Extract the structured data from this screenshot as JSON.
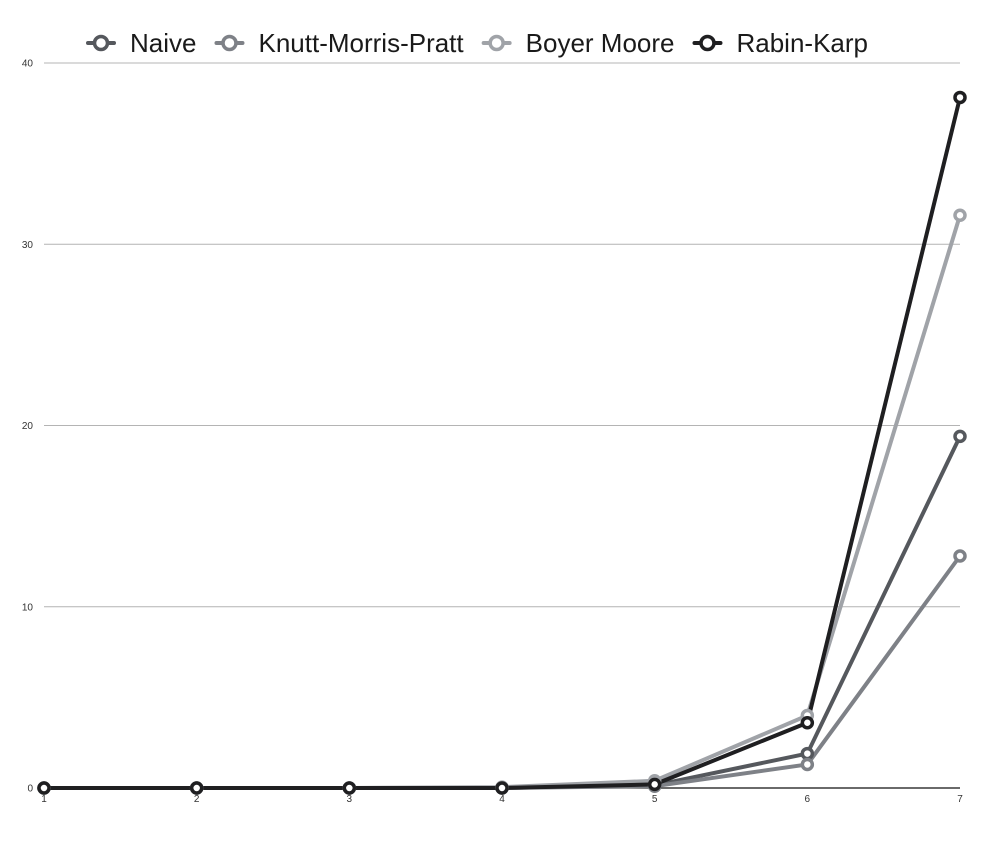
{
  "chart_data": {
    "type": "line",
    "x": [
      1,
      2,
      3,
      4,
      5,
      6,
      7
    ],
    "ylim": [
      0,
      40
    ],
    "yticks": [
      0,
      10,
      20,
      30,
      40
    ],
    "grid": true,
    "legend_placement": "top",
    "title": "",
    "xlabel": "",
    "ylabel": "",
    "series": [
      {
        "name": "Naive",
        "color": "#55585d",
        "values": [
          0,
          0,
          0,
          0,
          0.15,
          1.9,
          19.4
        ]
      },
      {
        "name": "Knutt-Morris-Pratt",
        "color": "#7e8187",
        "values": [
          0,
          0,
          0,
          0,
          0.1,
          1.3,
          12.8
        ]
      },
      {
        "name": "Boyer Moore",
        "color": "#a0a3a8",
        "values": [
          0,
          0,
          0,
          0.05,
          0.4,
          4.0,
          31.6
        ]
      },
      {
        "name": "Rabin-Karp",
        "color": "#1f1f21",
        "values": [
          0,
          0,
          0,
          0,
          0.2,
          3.6,
          38.1
        ]
      }
    ]
  }
}
